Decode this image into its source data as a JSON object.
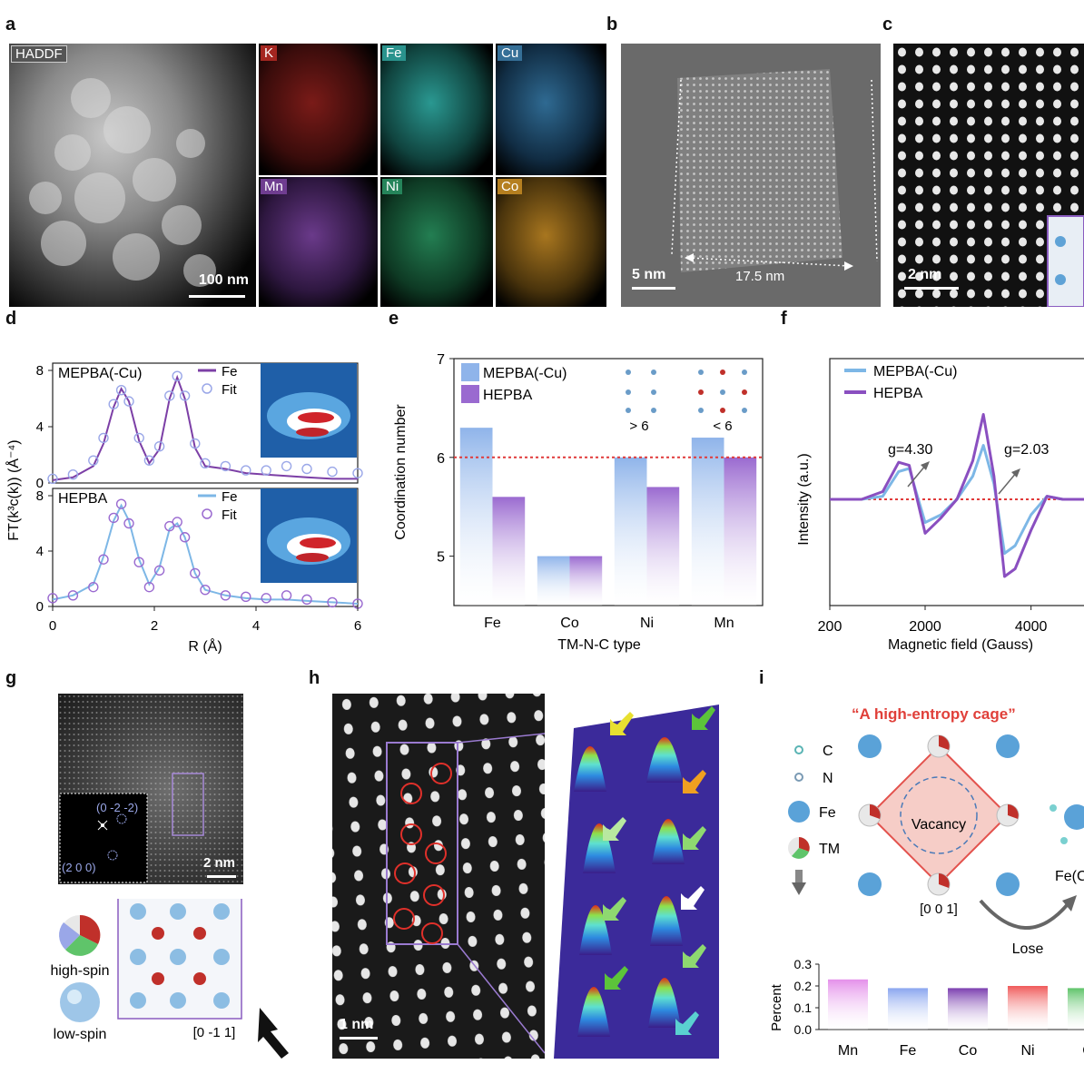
{
  "panels": {
    "a": "a",
    "b": "b",
    "c": "c",
    "d": "d",
    "e": "e",
    "f": "f",
    "g": "g",
    "h": "h",
    "i": "i"
  },
  "panel_a": {
    "haddf_label": "HADDF",
    "scale": "100 nm",
    "maps": [
      {
        "label": "K",
        "color": "#c0302a",
        "tag_color": "#a52620"
      },
      {
        "label": "Fe",
        "color": "#33b8b0",
        "tag_color": "#2a938d"
      },
      {
        "label": "Cu",
        "color": "#3e86b8",
        "tag_color": "#356f97"
      },
      {
        "label": "Mn",
        "color": "#8a4fb0",
        "tag_color": "#6f3d90"
      },
      {
        "label": "Ni",
        "color": "#2da26a",
        "tag_color": "#25845a"
      },
      {
        "label": "Co",
        "color": "#d59a2e",
        "tag_color": "#b57f20"
      }
    ]
  },
  "panel_b": {
    "scale": "5 nm",
    "dimension": "17.5 nm"
  },
  "panel_c": {
    "scale": "2 nm"
  },
  "panel_d": {
    "ylabel": "FT(k³c(k)) (Å⁻⁴)",
    "xlabel": "R (Å)",
    "legend_line": "Fe",
    "legend_fit": "Fit",
    "samples": [
      "MEPBA(-Cu)",
      "HEPBA"
    ]
  },
  "panel_e": {
    "legend": [
      "MEPBA(-Cu)",
      "HEPBA"
    ],
    "insets": [
      "> 6",
      "< 6"
    ]
  },
  "panel_f": {
    "legend": [
      "MEPBA(-Cu)",
      "HEPBA"
    ],
    "g1": "g=4.30",
    "g2": "g=2.03"
  },
  "panel_g": {
    "fft_labels": [
      "(0 -2 -2)",
      "(2 0 0)"
    ],
    "scale": "2 nm",
    "high_spin": "high-spin",
    "low_spin": "low-spin",
    "zone_axis": "[0 -1 1]"
  },
  "panel_h": {
    "scale": "1 nm"
  },
  "panel_i": {
    "title": "“A high-entropy cage”",
    "legend": [
      "C",
      "N",
      "Fe",
      "TM"
    ],
    "vacancy": "Vacancy",
    "zone_axis": "[0 0 1]",
    "lose": "Lose",
    "product": "Fe(C"
  },
  "chart_data": [
    {
      "id": "d",
      "type": "line",
      "xlabel": "R (Å)",
      "ylabel": "FT(k³c(k)) (Å⁻⁴)",
      "xlim": [
        0,
        6
      ],
      "ylim": [
        0,
        8
      ],
      "xticks": [
        0,
        2,
        4,
        6
      ],
      "yticks": [
        0,
        4,
        8
      ],
      "series": [
        {
          "name": "Fe",
          "sample": "MEPBA(-Cu)",
          "x": [
            0,
            0.4,
            0.8,
            1.0,
            1.2,
            1.35,
            1.5,
            1.7,
            1.9,
            2.1,
            2.3,
            2.45,
            2.6,
            2.8,
            3.0,
            3.4,
            3.8,
            4.2,
            4.6,
            5.0,
            5.5,
            6.0
          ],
          "y": [
            0.2,
            0.4,
            1.2,
            2.8,
            5.4,
            6.7,
            5.8,
            3.0,
            1.4,
            2.4,
            6.0,
            7.5,
            6.0,
            2.5,
            1.2,
            1.0,
            0.7,
            0.6,
            0.5,
            0.4,
            0.3,
            0.3
          ]
        },
        {
          "name": "Fit",
          "sample": "MEPBA(-Cu)",
          "x": [
            0,
            0.4,
            0.8,
            1.0,
            1.2,
            1.35,
            1.5,
            1.7,
            1.9,
            2.1,
            2.3,
            2.45,
            2.6,
            2.8,
            3.0,
            3.4,
            3.8,
            4.2,
            4.6,
            5.0,
            5.5,
            6.0
          ],
          "y": [
            0.3,
            0.6,
            1.6,
            3.2,
            5.6,
            6.6,
            5.8,
            3.2,
            1.6,
            2.6,
            6.2,
            7.6,
            6.2,
            2.8,
            1.4,
            1.2,
            0.9,
            0.9,
            1.2,
            1.0,
            0.8,
            0.7
          ]
        },
        {
          "name": "Fe",
          "sample": "HEPBA",
          "x": [
            0,
            0.4,
            0.8,
            1.0,
            1.2,
            1.35,
            1.5,
            1.7,
            1.9,
            2.1,
            2.3,
            2.45,
            2.6,
            2.8,
            3.0,
            3.4,
            3.8,
            4.2,
            4.6,
            5.0,
            5.5,
            6.0
          ],
          "y": [
            0.5,
            0.8,
            1.6,
            3.6,
            6.2,
            7.3,
            6.2,
            3.4,
            1.6,
            2.8,
            5.6,
            6.0,
            5.0,
            2.4,
            1.2,
            0.8,
            0.6,
            0.5,
            0.5,
            0.4,
            0.3,
            0.2
          ]
        },
        {
          "name": "Fit",
          "sample": "HEPBA",
          "x": [
            0,
            0.4,
            0.8,
            1.0,
            1.2,
            1.35,
            1.5,
            1.7,
            1.9,
            2.1,
            2.3,
            2.45,
            2.6,
            2.8,
            3.0,
            3.4,
            3.8,
            4.2,
            4.6,
            5.0,
            5.5,
            6.0
          ],
          "y": [
            0.6,
            0.8,
            1.4,
            3.4,
            6.4,
            7.4,
            6.0,
            3.2,
            1.4,
            2.6,
            5.8,
            6.1,
            5.0,
            2.4,
            1.2,
            0.8,
            0.7,
            0.6,
            0.8,
            0.5,
            0.3,
            0.2
          ]
        }
      ]
    },
    {
      "id": "e",
      "type": "bar",
      "xlabel": "TM-N-C type",
      "ylabel": "Coordination number",
      "categories": [
        "Fe",
        "Co",
        "Ni",
        "Mn"
      ],
      "ylim": [
        4.5,
        7
      ],
      "yticks": [
        5,
        6,
        7
      ],
      "reference_line": 6,
      "series": [
        {
          "name": "MEPBA(-Cu)",
          "values": [
            6.3,
            5.0,
            6.0,
            6.2
          ],
          "color": "#8fb4ea"
        },
        {
          "name": "HEPBA",
          "values": [
            5.6,
            5.0,
            5.7,
            6.0
          ],
          "color": "#9a6ad0"
        }
      ]
    },
    {
      "id": "f",
      "type": "line",
      "xlabel": "Magnetic field (Gauss)",
      "ylabel": "Intensity (a.u.)",
      "xlim": [
        200,
        5000
      ],
      "xticks": [
        200,
        2000,
        4000
      ],
      "series": [
        {
          "name": "MEPBA(-Cu)",
          "x": [
            200,
            800,
            1200,
            1500,
            1700,
            2000,
            2300,
            2600,
            2900,
            3100,
            3300,
            3500,
            3700,
            4000,
            4300,
            4600,
            5000
          ],
          "y": [
            0,
            0,
            0.02,
            0.18,
            0.2,
            -0.15,
            -0.1,
            0,
            0.15,
            0.35,
            0.1,
            -0.35,
            -0.3,
            -0.1,
            0.02,
            0,
            0
          ]
        },
        {
          "name": "HEPBA",
          "x": [
            200,
            800,
            1200,
            1500,
            1700,
            2000,
            2300,
            2600,
            2900,
            3100,
            3300,
            3500,
            3700,
            4000,
            4300,
            4600,
            5000
          ],
          "y": [
            0,
            0,
            0.05,
            0.24,
            0.22,
            -0.22,
            -0.12,
            0,
            0.25,
            0.55,
            0.15,
            -0.5,
            -0.45,
            -0.2,
            0.02,
            0,
            0
          ]
        }
      ]
    },
    {
      "id": "i",
      "type": "bar",
      "ylabel": "Percent",
      "categories": [
        "Mn",
        "Fe",
        "Co",
        "Ni",
        "C"
      ],
      "ylim": [
        0,
        0.3
      ],
      "yticks": [
        0.0,
        0.1,
        0.2,
        0.3
      ],
      "values": [
        0.23,
        0.19,
        0.19,
        0.2,
        0.19
      ],
      "colors": [
        "#e490ea",
        "#8aa6ef",
        "#7b3fb0",
        "#f05a5a",
        "#5fc46a"
      ]
    }
  ]
}
